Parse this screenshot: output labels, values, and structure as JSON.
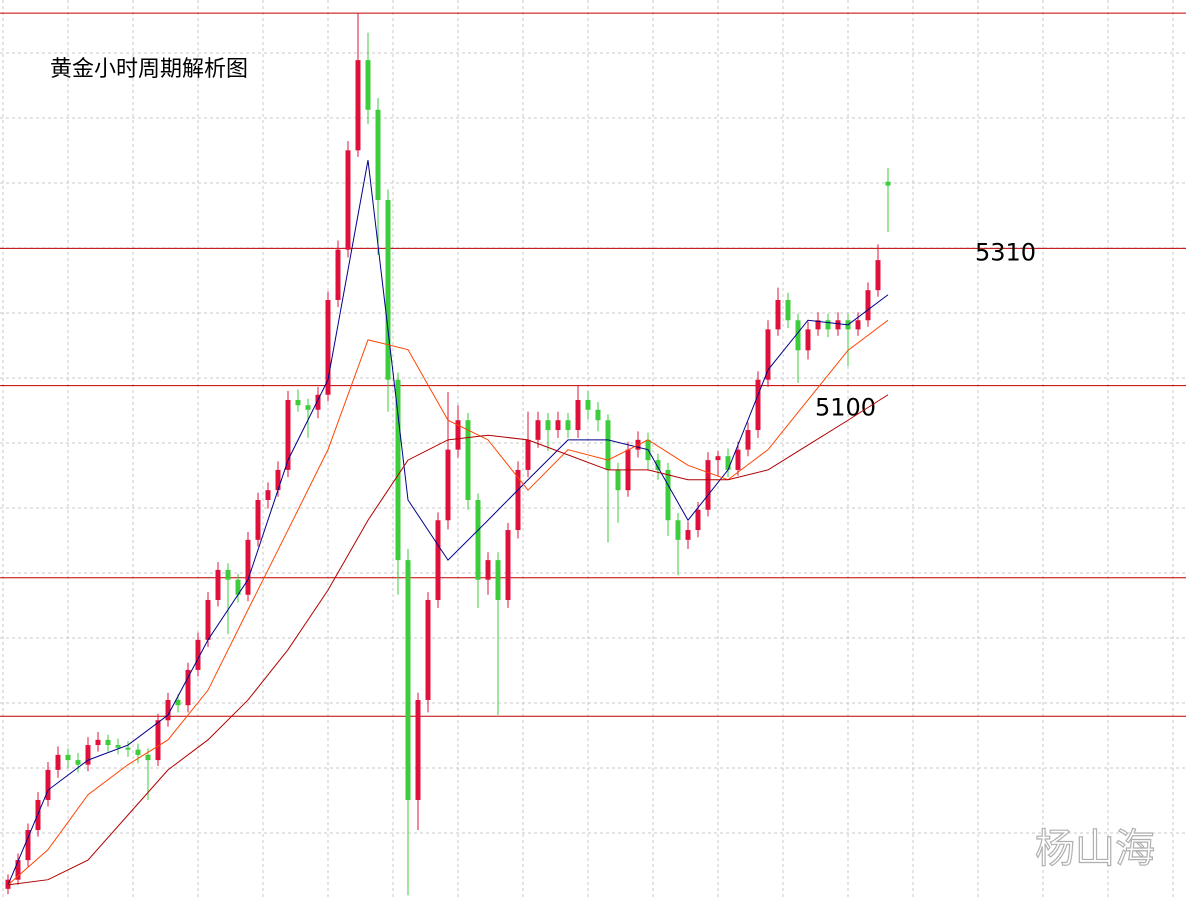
{
  "chart_data": {
    "type": "candlestick",
    "title": "黄金小时周期解析图",
    "watermark": "杨山海",
    "ylim": [
      4316,
      5690
    ],
    "up_color": "#e0103c",
    "down_color": "#3ccc3c",
    "level_color": "#c00000",
    "levels": [
      5670,
      {
        "value": 5310,
        "label": "5310"
      },
      {
        "value": 5100,
        "label": "5100"
      },
      4806,
      4594
    ],
    "ohlc": [
      [
        4330,
        4352,
        4322,
        4344
      ],
      [
        4344,
        4384,
        4336,
        4374
      ],
      [
        4374,
        4430,
        4364,
        4420
      ],
      [
        4420,
        4478,
        4410,
        4466
      ],
      [
        4466,
        4524,
        4456,
        4512
      ],
      [
        4512,
        4548,
        4500,
        4535
      ],
      [
        4535,
        4545,
        4515,
        4527
      ],
      [
        4527,
        4538,
        4508,
        4520
      ],
      [
        4520,
        4562,
        4510,
        4550
      ],
      [
        4550,
        4570,
        4540,
        4558
      ],
      [
        4558,
        4566,
        4540,
        4550
      ],
      [
        4550,
        4560,
        4536,
        4546
      ],
      [
        4546,
        4556,
        4532,
        4543
      ],
      [
        4543,
        4552,
        4522,
        4535
      ],
      [
        4535,
        4545,
        4466,
        4527
      ],
      [
        4527,
        4598,
        4518,
        4588
      ],
      [
        4588,
        4630,
        4578,
        4619
      ],
      [
        4619,
        4628,
        4600,
        4611
      ],
      [
        4611,
        4676,
        4600,
        4665
      ],
      [
        4665,
        4722,
        4655,
        4711
      ],
      [
        4711,
        4784,
        4700,
        4772
      ],
      [
        4772,
        4830,
        4762,
        4818
      ],
      [
        4818,
        4828,
        4720,
        4803
      ],
      [
        4803,
        4812,
        4768,
        4780
      ],
      [
        4780,
        4876,
        4770,
        4864
      ],
      [
        4864,
        4936,
        4854,
        4925
      ],
      [
        4925,
        4952,
        4912,
        4940
      ],
      [
        4940,
        4984,
        4930,
        4971
      ],
      [
        4971,
        5092,
        4960,
        5078
      ],
      [
        5078,
        5094,
        5060,
        5070
      ],
      [
        5070,
        5080,
        5020,
        5063
      ],
      [
        5063,
        5098,
        5050,
        5086
      ],
      [
        5086,
        5244,
        5076,
        5231
      ],
      [
        5231,
        5322,
        5220,
        5308
      ],
      [
        5308,
        5474,
        5296,
        5460
      ],
      [
        5460,
        5670,
        5450,
        5598
      ],
      [
        5598,
        5640,
        5500,
        5522
      ],
      [
        5522,
        5540,
        5300,
        5384
      ],
      [
        5384,
        5400,
        5060,
        5109
      ],
      [
        5109,
        5120,
        4780,
        4833
      ],
      [
        4833,
        4850,
        4320,
        4466
      ],
      [
        4466,
        4630,
        4420,
        4619
      ],
      [
        4619,
        4784,
        4600,
        4772
      ],
      [
        4772,
        4906,
        4760,
        4894
      ],
      [
        4894,
        5090,
        4880,
        5002
      ],
      [
        5002,
        5070,
        4990,
        5047
      ],
      [
        5047,
        5058,
        4910,
        4925
      ],
      [
        4925,
        4935,
        4760,
        4803
      ],
      [
        4803,
        4845,
        4780,
        4833
      ],
      [
        4833,
        4845,
        4596,
        4772
      ],
      [
        4772,
        4890,
        4760,
        4879
      ],
      [
        4879,
        4984,
        4866,
        4971
      ],
      [
        4971,
        5060,
        4960,
        5017
      ],
      [
        5017,
        5060,
        5005,
        5047
      ],
      [
        5047,
        5058,
        5000,
        5032
      ],
      [
        5032,
        5060,
        5020,
        5047
      ],
      [
        5047,
        5058,
        5020,
        5032
      ],
      [
        5032,
        5100,
        5020,
        5078
      ],
      [
        5078,
        5092,
        5048,
        5063
      ],
      [
        5063,
        5075,
        5030,
        5047
      ],
      [
        5047,
        5056,
        4860,
        4971
      ],
      [
        4971,
        4982,
        4890,
        4940
      ],
      [
        4940,
        5014,
        4930,
        5002
      ],
      [
        5002,
        5030,
        4990,
        5017
      ],
      [
        5017,
        5028,
        4970,
        4986
      ],
      [
        4986,
        4996,
        4956,
        4971
      ],
      [
        4971,
        4982,
        4870,
        4894
      ],
      [
        4894,
        4905,
        4810,
        4864
      ],
      [
        4864,
        4892,
        4850,
        4879
      ],
      [
        4879,
        4922,
        4868,
        4910
      ],
      [
        4910,
        4998,
        4900,
        4986
      ],
      [
        4986,
        5000,
        4962,
        4992
      ],
      [
        4992,
        5004,
        4960,
        4971
      ],
      [
        4971,
        5014,
        4962,
        5002
      ],
      [
        5002,
        5044,
        4992,
        5032
      ],
      [
        5032,
        5122,
        5020,
        5109
      ],
      [
        5109,
        5200,
        5098,
        5186
      ],
      [
        5186,
        5250,
        5176,
        5231
      ],
      [
        5231,
        5242,
        5188,
        5200
      ],
      [
        5200,
        5210,
        5104,
        5154
      ],
      [
        5154,
        5198,
        5140,
        5186
      ],
      [
        5186,
        5212,
        5176,
        5200
      ],
      [
        5200,
        5210,
        5174,
        5186
      ],
      [
        5186,
        5212,
        5176,
        5200
      ],
      [
        5200,
        5210,
        5130,
        5186
      ],
      [
        5186,
        5212,
        5176,
        5200
      ],
      [
        5200,
        5258,
        5190,
        5246
      ],
      [
        5246,
        5316,
        5236,
        5292
      ],
      [
        5412,
        5433,
        5335,
        5406
      ]
    ],
    "series": [
      {
        "color": "#00008b",
        "x": [
          0,
          4,
          8,
          12,
          16,
          20,
          24,
          28,
          32,
          36,
          40,
          44,
          48,
          52,
          56,
          60,
          64,
          68,
          72,
          76,
          80,
          84,
          88
        ],
        "values": [
          4336,
          4481,
          4527,
          4550,
          4596,
          4711,
          4803,
          4986,
          5109,
          5445,
          4925,
          4833,
          4894,
          4956,
          5017,
          5017,
          5002,
          4894,
          4971,
          5124,
          5200,
          5193,
          5239
        ]
      },
      {
        "color": "#ff4500",
        "x": [
          0,
          4,
          8,
          12,
          16,
          20,
          24,
          28,
          32,
          36,
          40,
          44,
          48,
          52,
          56,
          60,
          64,
          68,
          72,
          76,
          80,
          84,
          88
        ],
        "values": [
          4336,
          4390,
          4474,
          4520,
          4558,
          4634,
          4757,
          4879,
          5002,
          5170,
          5155,
          5047,
          5017,
          4940,
          5002,
          4986,
          5017,
          4978,
          4956,
          5002,
          5078,
          5154,
          5200
        ]
      },
      {
        "color": "#b00000",
        "x": [
          0,
          4,
          8,
          12,
          16,
          20,
          24,
          28,
          32,
          36,
          40,
          44,
          48,
          52,
          56,
          60,
          64,
          68,
          72,
          76,
          80,
          84,
          88
        ],
        "values": [
          4336,
          4344,
          4374,
          4443,
          4512,
          4558,
          4619,
          4696,
          4787,
          4894,
          4986,
          5017,
          5024,
          5017,
          4994,
          4971,
          4971,
          4956,
          4956,
          4971,
          5009,
          5047,
          5086
        ]
      }
    ]
  }
}
